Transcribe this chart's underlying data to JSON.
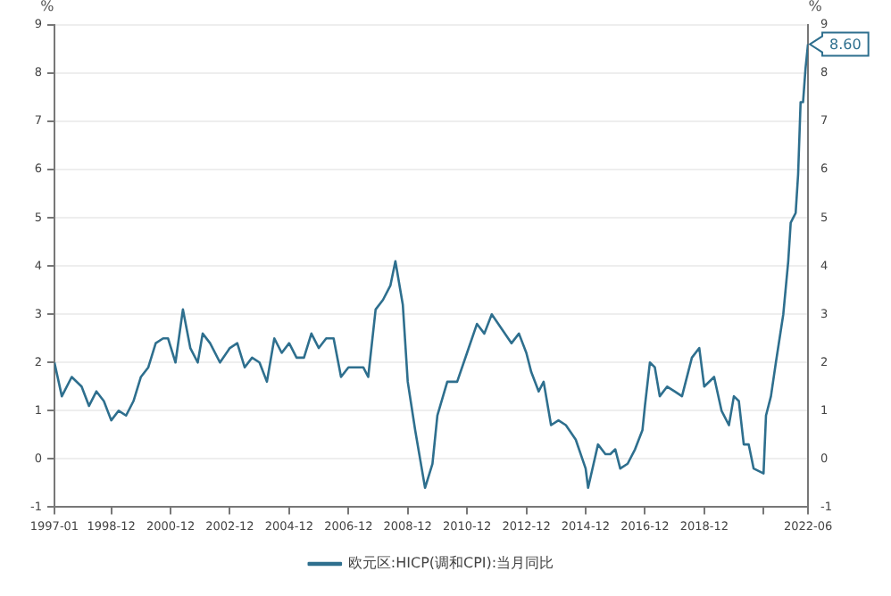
{
  "chart_data": {
    "type": "line",
    "ylabel": "%",
    "y2label": "%",
    "xlim": [
      "1997-01",
      "2022-06"
    ],
    "xticks": [
      "1997-01",
      "1998-12",
      "2000-12",
      "2002-12",
      "2004-12",
      "2006-12",
      "2008-12",
      "2010-12",
      "2012-12",
      "2014-12",
      "2016-12",
      "2018-12",
      {
        "value": "2020-12",
        "label": null
      },
      "2022-06"
    ],
    "ylim": [
      -1,
      9
    ],
    "yticks": [
      -1,
      0,
      1,
      2,
      3,
      4,
      5,
      6,
      7,
      8,
      9
    ],
    "y2lim": [
      -1,
      9
    ],
    "y2ticks": [
      -1,
      0,
      1,
      2,
      3,
      4,
      5,
      6,
      7,
      8,
      9
    ],
    "grid": "y",
    "legend": "bottom",
    "marker": "none",
    "line_style": "solid",
    "annotations": [
      {
        "text": "8.60",
        "x": "2022-06",
        "y": 8.6
      }
    ],
    "x": [
      "1997-01",
      "1997-04",
      "1997-08",
      "1997-12",
      "1998-03",
      "1998-06",
      "1998-09",
      "1998-12",
      "1999-03",
      "1999-06",
      "1999-09",
      "1999-12",
      "2000-03",
      "2000-06",
      "2000-09",
      "2000-11",
      "2001-02",
      "2001-05",
      "2001-08",
      "2001-11",
      "2002-01",
      "2002-04",
      "2002-08",
      "2002-12",
      "2003-03",
      "2003-06",
      "2003-09",
      "2003-12",
      "2004-03",
      "2004-06",
      "2004-09",
      "2004-12",
      "2005-03",
      "2005-06",
      "2005-09",
      "2005-12",
      "2006-03",
      "2006-06",
      "2006-09",
      "2006-12",
      "2007-03",
      "2007-06",
      "2007-08",
      "2007-11",
      "2008-02",
      "2008-05",
      "2008-07",
      "2008-10",
      "2008-12",
      "2009-03",
      "2009-05",
      "2009-07",
      "2009-10",
      "2009-12",
      "2010-04",
      "2010-08",
      "2010-12",
      "2011-04",
      "2011-07",
      "2011-10",
      "2012-02",
      "2012-06",
      "2012-09",
      "2012-12",
      "2013-02",
      "2013-05",
      "2013-07",
      "2013-10",
      "2014-01",
      "2014-04",
      "2014-08",
      "2014-12",
      "2015-01",
      "2015-05",
      "2015-08",
      "2015-10",
      "2015-12",
      "2016-02",
      "2016-05",
      "2016-08",
      "2016-11",
      "2016-12",
      "2017-02",
      "2017-04",
      "2017-06",
      "2017-09",
      "2017-12",
      "2018-03",
      "2018-07",
      "2018-10",
      "2018-12",
      "2019-04",
      "2019-07",
      "2019-10",
      "2019-12",
      "2020-02",
      "2020-04",
      "2020-06",
      "2020-08",
      "2020-12",
      "2021-01",
      "2021-03",
      "2021-05",
      "2021-08",
      "2021-10",
      "2021-11",
      "2021-12",
      "2022-01",
      "2022-02",
      "2022-03",
      "2022-04",
      "2022-05",
      "2022-06"
    ],
    "series": [
      {
        "name": "欧元区:HICP(调和CPI):当月同比",
        "color": "#2e6f8e",
        "values": [
          2.0,
          1.3,
          1.7,
          1.5,
          1.1,
          1.4,
          1.2,
          0.8,
          1.0,
          0.9,
          1.2,
          1.7,
          1.9,
          2.4,
          2.5,
          2.5,
          2.0,
          3.1,
          2.3,
          2.0,
          2.6,
          2.4,
          2.0,
          2.3,
          2.4,
          1.9,
          2.1,
          2.0,
          1.6,
          2.5,
          2.2,
          2.4,
          2.1,
          2.1,
          2.6,
          2.3,
          2.5,
          2.5,
          1.7,
          1.9,
          1.9,
          1.9,
          1.7,
          3.1,
          3.3,
          3.6,
          4.1,
          3.2,
          1.6,
          0.6,
          0.0,
          -0.6,
          -0.1,
          0.9,
          1.6,
          1.6,
          2.2,
          2.8,
          2.6,
          3.0,
          2.7,
          2.4,
          2.6,
          2.2,
          1.8,
          1.4,
          1.6,
          0.7,
          0.8,
          0.7,
          0.4,
          -0.2,
          -0.6,
          0.3,
          0.1,
          0.1,
          0.2,
          -0.2,
          -0.1,
          0.2,
          0.6,
          1.1,
          2.0,
          1.9,
          1.3,
          1.5,
          1.4,
          1.3,
          2.1,
          2.3,
          1.5,
          1.7,
          1.0,
          0.7,
          1.3,
          1.2,
          0.3,
          0.3,
          -0.2,
          -0.3,
          0.9,
          1.3,
          2.0,
          3.0,
          4.1,
          4.9,
          5.0,
          5.1,
          5.9,
          7.4,
          7.4,
          8.1,
          8.6
        ]
      }
    ]
  }
}
